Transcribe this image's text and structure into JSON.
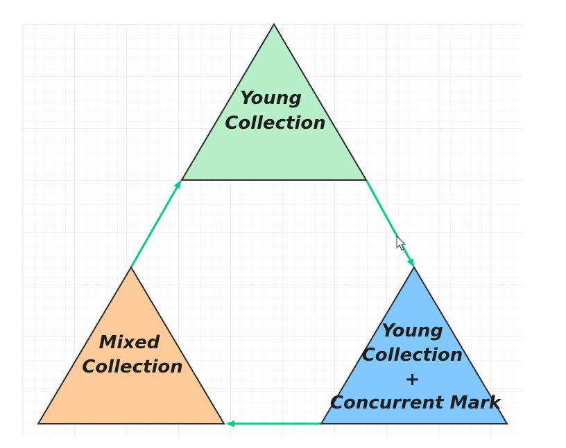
{
  "diagram": {
    "edge_color": "#00d084",
    "nodes": [
      {
        "id": "young-collection",
        "lines": [
          "Young",
          "Collection"
        ],
        "fill": "#b7f0c8"
      },
      {
        "id": "young-collection-concurrent-mark",
        "lines": [
          "Young",
          "Collection",
          "+",
          "Concurrent Mark"
        ],
        "fill": "#80c8ff"
      },
      {
        "id": "mixed-collection",
        "lines": [
          "Mixed",
          "Collection"
        ],
        "fill": "#ffcc99"
      }
    ],
    "edges": [
      {
        "from": "young-collection",
        "to": "young-collection-concurrent-mark"
      },
      {
        "from": "young-collection-concurrent-mark",
        "to": "mixed-collection"
      },
      {
        "from": "mixed-collection",
        "to": "young-collection"
      }
    ]
  }
}
